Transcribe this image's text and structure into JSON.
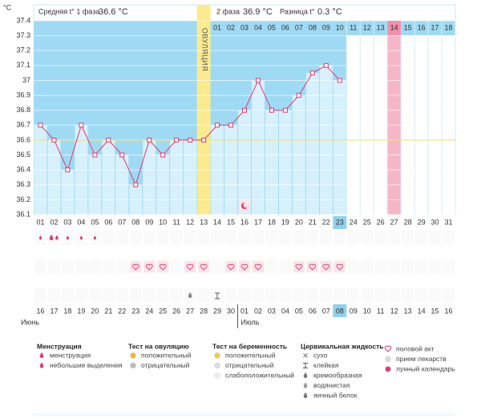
{
  "chart_data": {
    "type": "line",
    "y_unit": "°C",
    "header": {
      "phase1_label": "Средняя t° 1 фаза",
      "phase1_value": "36.6 °C",
      "phase2_label": "2 фаза",
      "phase2_value": "36.9 °C",
      "diff_label": "Разница t°",
      "diff_value": "0.3 °C"
    },
    "ovulation_label": "ОВУЛЯЦИЯ",
    "ovulation_day": 13,
    "categories": [
      "01",
      "02",
      "03",
      "04",
      "05",
      "06",
      "07",
      "08",
      "09",
      "10",
      "11",
      "12",
      "13",
      "14",
      "15",
      "16",
      "17",
      "18",
      "19",
      "20",
      "21",
      "22",
      "23",
      "24",
      "25",
      "26",
      "27",
      "28",
      "29",
      "30",
      "31"
    ],
    "dates": [
      "16",
      "17",
      "18",
      "19",
      "20",
      "21",
      "22",
      "23",
      "24",
      "25",
      "26",
      "27",
      "28",
      "29",
      "30",
      "01",
      "02",
      "03",
      "04",
      "05",
      "06",
      "07",
      "08",
      "09",
      "10",
      "11",
      "12",
      "13",
      "14",
      "15",
      "16"
    ],
    "red_days": [
      1,
      2,
      8,
      9,
      15,
      16,
      22,
      23,
      29,
      30
    ],
    "months": [
      {
        "label": "Июнь",
        "day": 1
      },
      {
        "label": "Июль",
        "day": 16
      }
    ],
    "phase2_start": 14,
    "phase2_days": [
      "01",
      "02",
      "03",
      "04",
      "05",
      "06",
      "07",
      "08",
      "09",
      "10",
      "11",
      "12",
      "13",
      "14",
      "15",
      "16",
      "17",
      "18"
    ],
    "values": [
      36.7,
      36.6,
      36.4,
      36.7,
      36.5,
      36.6,
      36.5,
      36.3,
      36.6,
      36.5,
      36.6,
      36.6,
      36.6,
      36.7,
      36.7,
      36.8,
      37.0,
      36.8,
      36.8,
      36.9,
      37.05,
      37.1,
      37.0,
      null,
      null,
      null,
      null,
      null,
      null,
      null,
      null
    ],
    "color": "#e03a6e",
    "ylim": [
      36.1,
      37.4
    ],
    "yticks": [
      37.4,
      37.3,
      37.2,
      37.1,
      37,
      36.9,
      36.8,
      36.7,
      36.6,
      36.5,
      36.4,
      36.3,
      36.2,
      36.1
    ],
    "grid": true,
    "coverline": 36.6,
    "today": 23,
    "highlight_day": 27,
    "menstruation_days": [
      2
    ],
    "spotting_days": [
      1,
      3,
      4,
      5
    ],
    "intercourse_days": [
      8,
      9,
      10,
      12,
      13,
      15,
      16,
      17,
      20,
      21,
      22,
      23
    ],
    "sticky_days": [
      14
    ],
    "watery_days": [
      12
    ],
    "lunar_days": [
      16
    ],
    "legend": [
      {
        "title": "Менструация",
        "items": [
          "менструация",
          "небольшие выделения"
        ]
      },
      {
        "title": "Тест на овуляцию",
        "items": [
          "положительный",
          "отрицательный"
        ]
      },
      {
        "title": "Тест на беременность",
        "items": [
          "положительный",
          "отрицательный",
          "слабоположительный"
        ]
      },
      {
        "title": "Цервикальная жидкость",
        "items": [
          "сухо",
          "клейкая",
          "кремообразная",
          "водянистая",
          "яичный белок"
        ]
      },
      {
        "title": null,
        "items": [
          "половой акт",
          "прием лекарств",
          "лунный календарь"
        ]
      }
    ]
  }
}
